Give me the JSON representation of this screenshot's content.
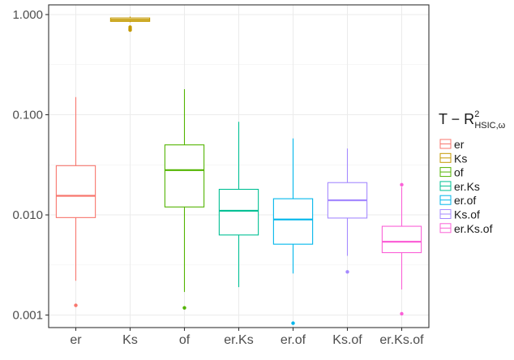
{
  "chart_data": {
    "type": "boxplot",
    "y_scale": "log10",
    "ylim": [
      0.00075,
      1.25
    ],
    "y_ticks": [
      {
        "value": 0.001,
        "label": "0.001"
      },
      {
        "value": 0.01,
        "label": "0.010"
      },
      {
        "value": 0.1,
        "label": "0.100"
      },
      {
        "value": 1,
        "label": "1.000"
      }
    ],
    "legend": {
      "title_main": "T − R",
      "title_sup": "2",
      "title_sub": "HSIC,ω",
      "position": "right"
    },
    "series": [
      {
        "name": "er",
        "color": "#F8766D",
        "whisker_low": 0.0022,
        "q1": 0.0094,
        "median": 0.0155,
        "q3": 0.031,
        "whisker_high": 0.15,
        "outliers": [
          0.00125
        ]
      },
      {
        "name": "Ks",
        "color": "#C49A00",
        "whisker_low": 0.84,
        "q1": 0.855,
        "median": 0.885,
        "q3": 0.925,
        "whisker_high": 0.955,
        "outliers": [
          0.75,
          0.72,
          0.7
        ]
      },
      {
        "name": "of",
        "color": "#53B400",
        "whisker_low": 0.0017,
        "q1": 0.012,
        "median": 0.028,
        "q3": 0.05,
        "whisker_high": 0.18,
        "outliers": [
          0.00118
        ]
      },
      {
        "name": "er.Ks",
        "color": "#00C094",
        "whisker_low": 0.0019,
        "q1": 0.0063,
        "median": 0.011,
        "q3": 0.018,
        "whisker_high": 0.085,
        "outliers": []
      },
      {
        "name": "er.of",
        "color": "#00B6EB",
        "whisker_low": 0.0026,
        "q1": 0.0051,
        "median": 0.009,
        "q3": 0.0145,
        "whisker_high": 0.058,
        "outliers": [
          0.00083
        ]
      },
      {
        "name": "Ks.of",
        "color": "#A58AFF",
        "whisker_low": 0.0039,
        "q1": 0.0093,
        "median": 0.014,
        "q3": 0.021,
        "whisker_high": 0.046,
        "outliers": [
          0.0027
        ]
      },
      {
        "name": "er.Ks.of",
        "color": "#FB61D7",
        "whisker_low": 0.0018,
        "q1": 0.0042,
        "median": 0.0054,
        "q3": 0.0077,
        "whisker_high": 0.019,
        "outliers": [
          0.02,
          0.00103
        ]
      }
    ]
  }
}
